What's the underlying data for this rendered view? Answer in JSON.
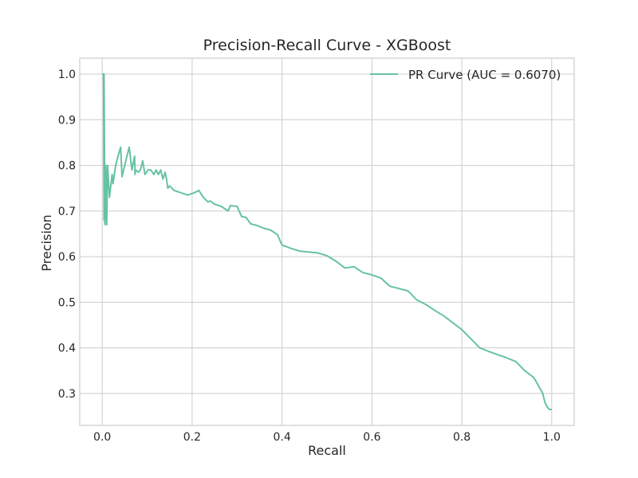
{
  "chart_data": {
    "type": "line",
    "title": "Precision-Recall Curve - XGBoost",
    "xlabel": "Recall",
    "ylabel": "Precision",
    "xlim": [
      -0.05,
      1.05
    ],
    "ylim": [
      0.23,
      1.035
    ],
    "x_ticks": [
      0.0,
      0.2,
      0.4,
      0.6,
      0.8,
      1.0
    ],
    "x_tick_labels": [
      "0.0",
      "0.2",
      "0.4",
      "0.6",
      "0.8",
      "1.0"
    ],
    "y_ticks": [
      0.3,
      0.4,
      0.5,
      0.6,
      0.7,
      0.8,
      0.9,
      1.0
    ],
    "y_tick_labels": [
      "0.3",
      "0.4",
      "0.5",
      "0.6",
      "0.7",
      "0.8",
      "0.9",
      "1.0"
    ],
    "grid": true,
    "legend_position": "top-right",
    "series": [
      {
        "name": "PR Curve (AUC = 0.6070)",
        "color": "#66c2a5",
        "x": [
          0.0,
          0.003,
          0.004,
          0.004,
          0.006,
          0.008,
          0.01,
          0.012,
          0.016,
          0.022,
          0.024,
          0.03,
          0.035,
          0.041,
          0.044,
          0.05,
          0.055,
          0.06,
          0.066,
          0.072,
          0.073,
          0.074,
          0.08,
          0.085,
          0.09,
          0.095,
          0.102,
          0.108,
          0.115,
          0.12,
          0.125,
          0.13,
          0.135,
          0.14,
          0.143,
          0.146,
          0.15,
          0.16,
          0.175,
          0.19,
          0.205,
          0.215,
          0.225,
          0.235,
          0.24,
          0.25,
          0.265,
          0.28,
          0.285,
          0.3,
          0.31,
          0.32,
          0.33,
          0.345,
          0.36,
          0.375,
          0.39,
          0.4,
          0.41,
          0.42,
          0.44,
          0.46,
          0.48,
          0.5,
          0.52,
          0.54,
          0.56,
          0.58,
          0.6,
          0.62,
          0.64,
          0.66,
          0.68,
          0.7,
          0.72,
          0.74,
          0.76,
          0.78,
          0.8,
          0.82,
          0.84,
          0.86,
          0.88,
          0.9,
          0.92,
          0.94,
          0.96,
          0.97,
          0.98,
          0.985,
          0.99,
          0.995,
          1.0
        ],
        "y": [
          1.0,
          1.0,
          0.68,
          1.0,
          0.67,
          0.8,
          0.67,
          0.8,
          0.73,
          0.78,
          0.76,
          0.8,
          0.82,
          0.84,
          0.775,
          0.8,
          0.82,
          0.84,
          0.79,
          0.82,
          0.78,
          0.79,
          0.785,
          0.79,
          0.81,
          0.78,
          0.79,
          0.79,
          0.78,
          0.79,
          0.78,
          0.79,
          0.77,
          0.785,
          0.77,
          0.75,
          0.755,
          0.745,
          0.74,
          0.735,
          0.74,
          0.745,
          0.73,
          0.72,
          0.722,
          0.715,
          0.71,
          0.7,
          0.712,
          0.71,
          0.688,
          0.686,
          0.672,
          0.668,
          0.662,
          0.658,
          0.648,
          0.625,
          0.622,
          0.618,
          0.612,
          0.61,
          0.608,
          0.602,
          0.59,
          0.575,
          0.578,
          0.565,
          0.56,
          0.553,
          0.535,
          0.53,
          0.525,
          0.505,
          0.495,
          0.482,
          0.47,
          0.455,
          0.44,
          0.42,
          0.4,
          0.392,
          0.385,
          0.378,
          0.37,
          0.35,
          0.335,
          0.318,
          0.3,
          0.28,
          0.27,
          0.265,
          0.265
        ]
      }
    ]
  }
}
